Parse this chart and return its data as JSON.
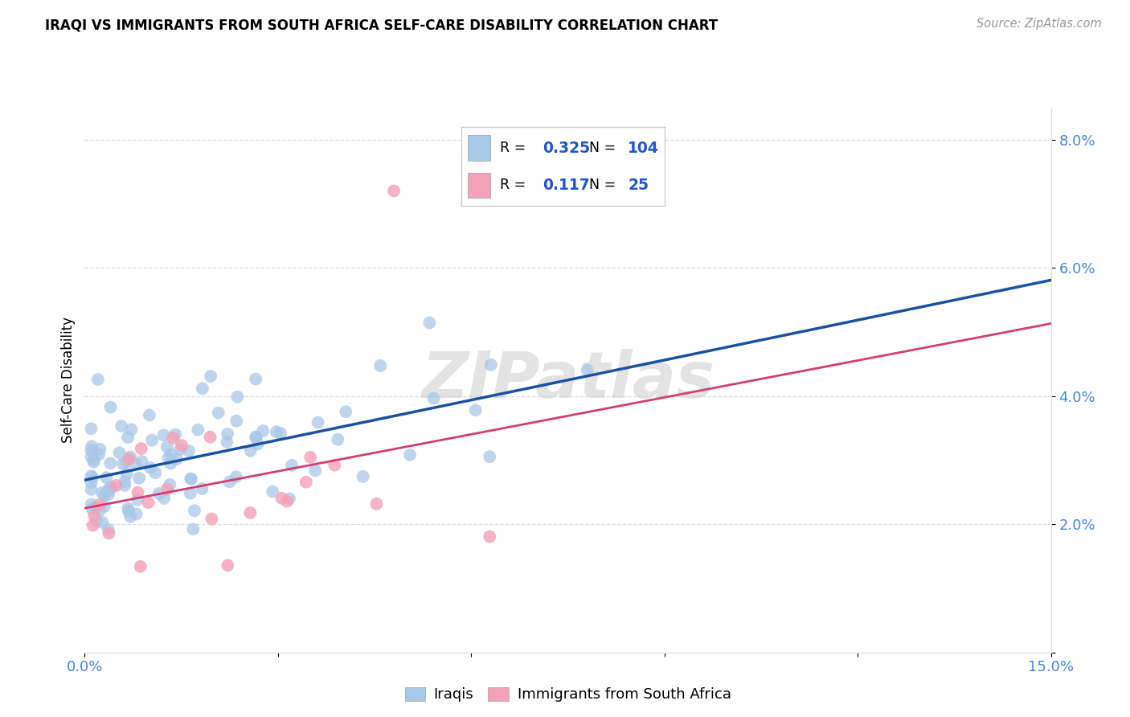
{
  "title": "IRAQI VS IMMIGRANTS FROM SOUTH AFRICA SELF-CARE DISABILITY CORRELATION CHART",
  "source": "Source: ZipAtlas.com",
  "ylabel": "Self-Care Disability",
  "xlim": [
    0.0,
    0.15
  ],
  "ylim": [
    0.0,
    0.085
  ],
  "xticks": [
    0.0,
    0.03,
    0.06,
    0.09,
    0.12,
    0.15
  ],
  "xticklabels": [
    "0.0%",
    "",
    "",
    "",
    "",
    "15.0%"
  ],
  "yticks": [
    0.0,
    0.02,
    0.04,
    0.06,
    0.08
  ],
  "yticklabels": [
    "",
    "2.0%",
    "4.0%",
    "6.0%",
    "8.0%"
  ],
  "iraqi_color": "#a8c8e8",
  "sa_color": "#f4a0b8",
  "iraqi_line_color": "#1a52a0",
  "sa_line_color": "#d04070",
  "stat_color": "#2255cc",
  "tick_color": "#4488dd",
  "grid_color": "#dddddd",
  "iraqi_R": 0.325,
  "iraqi_N": 104,
  "sa_R": 0.117,
  "sa_N": 25,
  "legend_label_1": "Iraqis",
  "legend_label_2": "Immigrants from South Africa",
  "watermark": "ZIPatlas"
}
